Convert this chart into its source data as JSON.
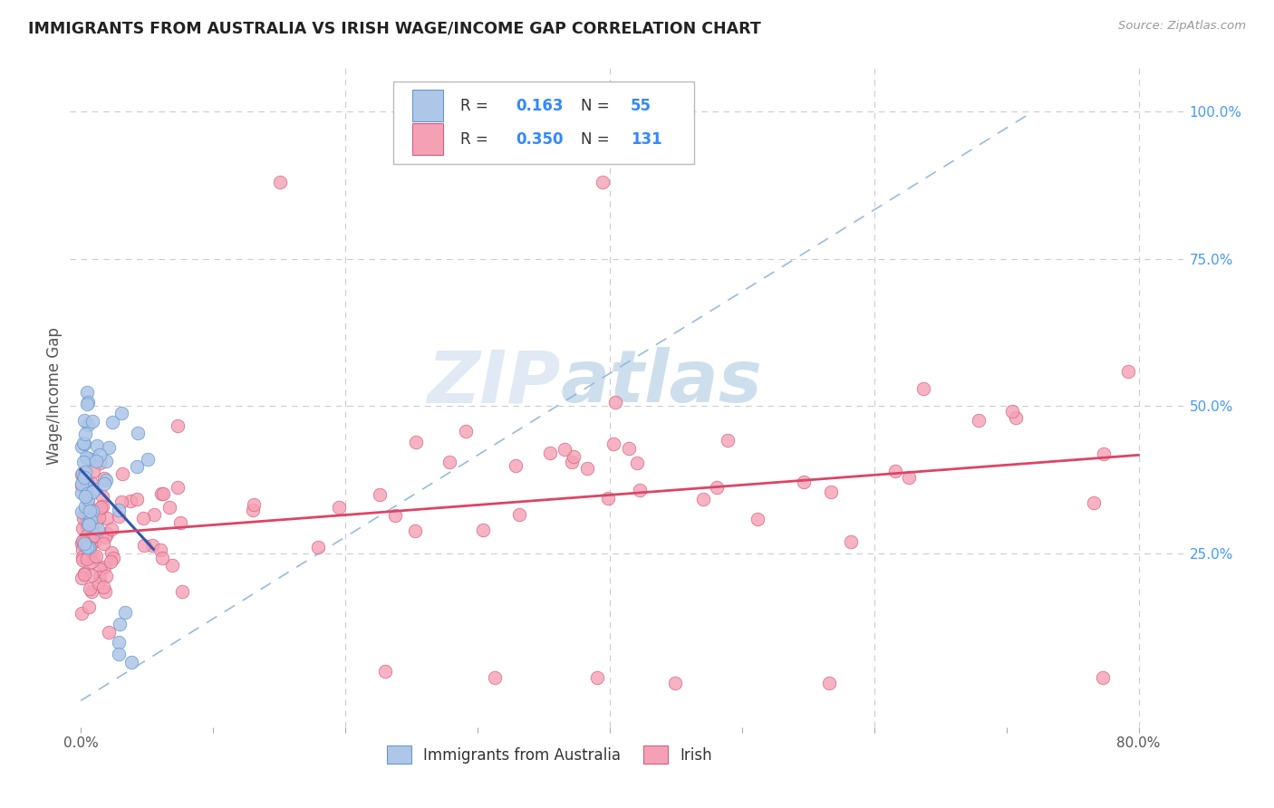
{
  "title": "IMMIGRANTS FROM AUSTRALIA VS IRISH WAGE/INCOME GAP CORRELATION CHART",
  "source": "Source: ZipAtlas.com",
  "ylabel": "Wage/Income Gap",
  "australia_color": "#aec6e8",
  "australian_edge_color": "#6699cc",
  "irish_color": "#f5a0b5",
  "irish_edge_color": "#d06080",
  "australia_line_color": "#3355aa",
  "irish_line_color": "#dd4466",
  "diagonal_color": "#99bbdd",
  "watermark_color": "#ccd8ee",
  "background_color": "#ffffff",
  "title_color": "#222222",
  "source_color": "#999999",
  "ylabel_color": "#555555",
  "xtick_color": "#555555",
  "ytick_color": "#4499ff",
  "grid_color": "#cccccc",
  "legend_border_color": "#bbbbbb",
  "legend_text_color": "#333333",
  "legend_value_color": "#3388ff"
}
